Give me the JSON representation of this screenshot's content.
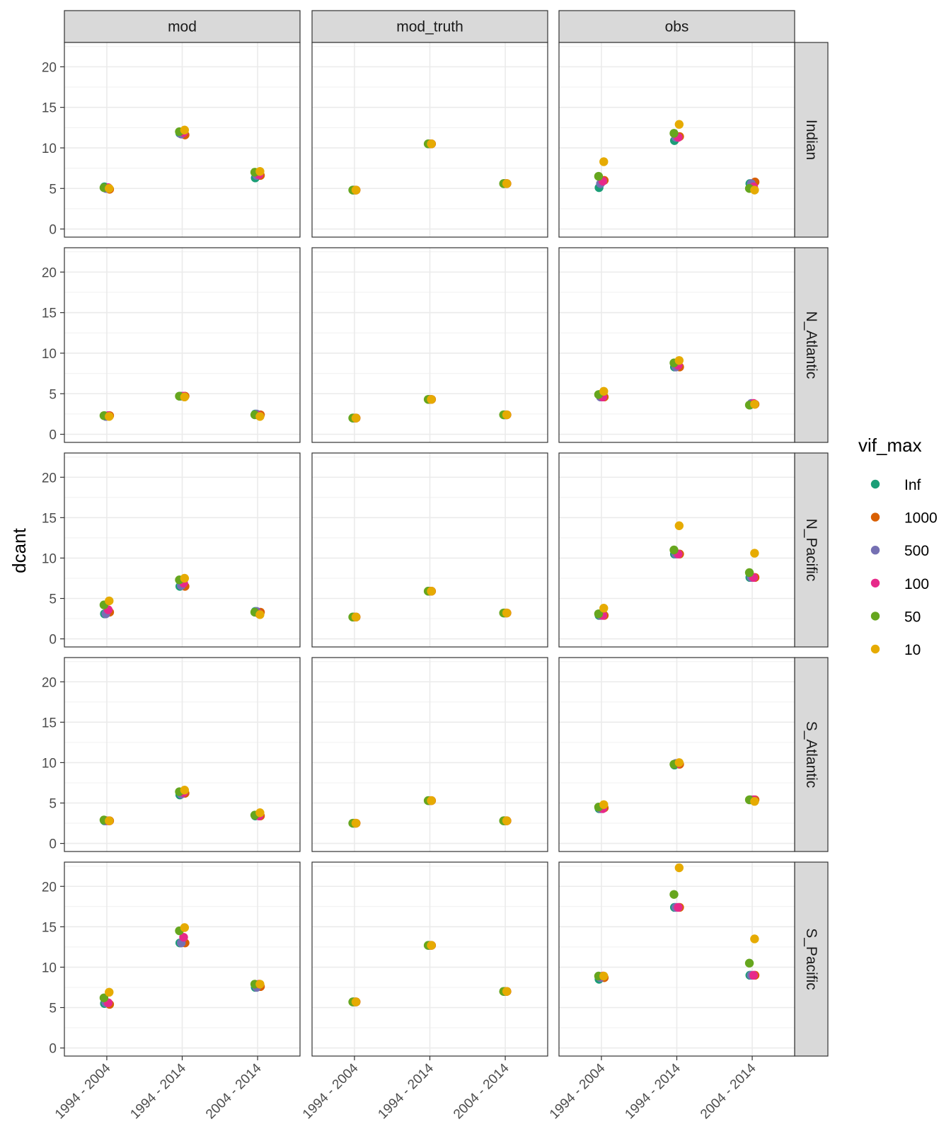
{
  "chart_data": {
    "type": "scatter",
    "ylabel": "dcant",
    "xlabel": "",
    "ylim": [
      -1,
      23
    ],
    "y_ticks": [
      0,
      5,
      10,
      15,
      20
    ],
    "periods": [
      "1994 - 2004",
      "1994 - 2014",
      "2004 - 2014"
    ],
    "columns": [
      "mod",
      "mod_truth",
      "obs"
    ],
    "rows": [
      "Indian",
      "N_Atlantic",
      "N_Pacific",
      "S_Atlantic",
      "S_Pacific"
    ],
    "legend": {
      "title": "vif_max",
      "placement": "right",
      "entries": [
        {
          "label": "Inf",
          "color": "#1B9E77"
        },
        {
          "label": "1000",
          "color": "#D95F02"
        },
        {
          "label": "500",
          "color": "#7570B3"
        },
        {
          "label": "100",
          "color": "#E7298A"
        },
        {
          "label": "50",
          "color": "#66A61E"
        },
        {
          "label": "10",
          "color": "#E6AB02"
        }
      ]
    },
    "grid": true,
    "panels": {
      "mod": {
        "Indian": [
          [
            5.2,
            4.9,
            5.0,
            5.1,
            5.1,
            5.0
          ],
          [
            11.8,
            11.6,
            11.7,
            11.9,
            12.0,
            12.2
          ],
          [
            6.3,
            6.6,
            6.6,
            6.7,
            7.0,
            7.1
          ]
        ],
        "N_Atlantic": [
          [
            2.3,
            2.3,
            2.2,
            2.3,
            2.3,
            2.2
          ],
          [
            4.7,
            4.7,
            4.7,
            4.7,
            4.7,
            4.6
          ],
          [
            2.5,
            2.4,
            2.5,
            2.3,
            2.4,
            2.2
          ]
        ],
        "N_Pacific": [
          [
            3.1,
            3.3,
            3.1,
            3.6,
            4.2,
            4.7
          ],
          [
            6.5,
            6.5,
            6.6,
            6.9,
            7.3,
            7.5
          ],
          [
            3.4,
            3.3,
            3.4,
            3.1,
            3.3,
            3.0
          ]
        ],
        "S_Atlantic": [
          [
            2.8,
            2.8,
            2.8,
            2.8,
            2.9,
            2.8
          ],
          [
            6.0,
            6.2,
            6.1,
            6.3,
            6.4,
            6.6
          ],
          [
            3.4,
            3.4,
            3.5,
            3.4,
            3.5,
            3.8
          ]
        ],
        "S_Pacific": [
          [
            5.5,
            5.4,
            5.6,
            5.6,
            6.2,
            6.9
          ],
          [
            13.0,
            13.0,
            13.0,
            13.7,
            14.5,
            14.9
          ],
          [
            7.5,
            7.6,
            7.5,
            7.9,
            7.9,
            7.9
          ]
        ]
      },
      "mod_truth": {
        "Indian": [
          [
            4.8,
            4.8,
            4.8,
            4.8,
            4.8,
            4.8
          ],
          [
            10.5,
            10.5,
            10.5,
            10.5,
            10.5,
            10.5
          ],
          [
            5.6,
            5.6,
            5.6,
            5.6,
            5.6,
            5.6
          ]
        ],
        "N_Atlantic": [
          [
            2.0,
            2.0,
            2.0,
            2.0,
            2.0,
            2.0
          ],
          [
            4.3,
            4.3,
            4.3,
            4.3,
            4.3,
            4.3
          ],
          [
            2.4,
            2.4,
            2.4,
            2.4,
            2.4,
            2.4
          ]
        ],
        "N_Pacific": [
          [
            2.7,
            2.7,
            2.7,
            2.7,
            2.7,
            2.7
          ],
          [
            5.9,
            5.9,
            5.9,
            5.9,
            5.9,
            5.9
          ],
          [
            3.2,
            3.2,
            3.2,
            3.2,
            3.2,
            3.2
          ]
        ],
        "S_Atlantic": [
          [
            2.5,
            2.5,
            2.5,
            2.5,
            2.5,
            2.5
          ],
          [
            5.3,
            5.3,
            5.3,
            5.3,
            5.3,
            5.3
          ],
          [
            2.8,
            2.8,
            2.8,
            2.8,
            2.8,
            2.8
          ]
        ],
        "S_Pacific": [
          [
            5.7,
            5.7,
            5.7,
            5.7,
            5.7,
            5.7
          ],
          [
            12.7,
            12.7,
            12.7,
            12.7,
            12.7,
            12.7
          ],
          [
            7.0,
            7.0,
            7.0,
            7.0,
            7.0,
            7.0
          ]
        ]
      },
      "obs": {
        "Indian": [
          [
            5.1,
            6.0,
            5.6,
            5.9,
            6.5,
            8.3
          ],
          [
            10.9,
            11.4,
            11.3,
            11.3,
            11.8,
            12.9
          ],
          [
            5.6,
            5.8,
            5.6,
            5.2,
            5.0,
            4.8
          ]
        ],
        "N_Atlantic": [
          [
            4.9,
            4.6,
            4.6,
            4.6,
            4.9,
            5.3
          ],
          [
            8.3,
            8.3,
            8.3,
            8.5,
            8.8,
            9.1
          ],
          [
            3.6,
            3.7,
            3.8,
            3.8,
            3.6,
            3.7
          ]
        ],
        "N_Pacific": [
          [
            2.9,
            2.9,
            2.9,
            2.9,
            3.1,
            3.8
          ],
          [
            10.5,
            10.5,
            10.5,
            10.5,
            11.0,
            14.0
          ],
          [
            7.6,
            7.6,
            7.6,
            7.6,
            8.2,
            10.6
          ]
        ],
        "S_Atlantic": [
          [
            4.3,
            4.4,
            4.3,
            4.3,
            4.5,
            4.8
          ],
          [
            9.7,
            9.8,
            9.9,
            9.9,
            9.8,
            10.0
          ],
          [
            5.4,
            5.4,
            5.4,
            5.4,
            5.4,
            5.2
          ]
        ],
        "S_Pacific": [
          [
            8.5,
            8.7,
            8.7,
            8.9,
            8.9,
            8.9
          ],
          [
            17.4,
            17.4,
            17.4,
            17.4,
            19.0,
            22.3
          ],
          [
            9.0,
            9.0,
            9.0,
            9.0,
            10.5,
            13.5
          ]
        ]
      }
    }
  }
}
